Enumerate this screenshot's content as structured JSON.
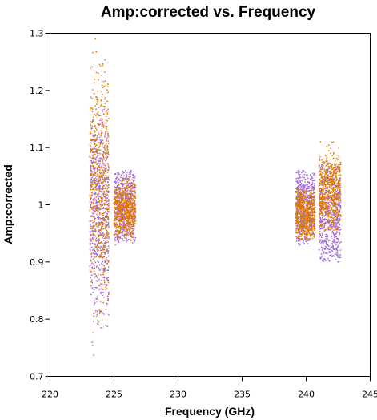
{
  "chart_data": {
    "type": "scatter",
    "title": "Amp:corrected vs. Frequency",
    "xlabel": "Frequency (GHz)",
    "ylabel": "Amp:corrected",
    "xlim": [
      220,
      245
    ],
    "ylim": [
      0.7,
      1.3
    ],
    "x_ticks": [
      "220",
      "225",
      "230",
      "235",
      "240",
      "245"
    ],
    "y_ticks": [
      "0.7",
      "0.8",
      "0.9",
      "1",
      "1.1",
      "1.2",
      "1.3"
    ],
    "grid": false,
    "colors": {
      "purple": "#a066e0",
      "orange": "#e07800"
    },
    "series": [
      {
        "color": "#a066e0",
        "clusters": [
          {
            "x_range": [
              223.1,
              224.6
            ],
            "center": 0.99,
            "spread": 0.1,
            "min": 0.785,
            "max": 1.17
          },
          {
            "x_range": [
              225.0,
              226.7
            ],
            "center": 1.0,
            "spread": 0.04,
            "min": 0.93,
            "max": 1.06
          },
          {
            "x_range": [
              239.2,
              240.7
            ],
            "center": 1.0,
            "spread": 0.035,
            "min": 0.93,
            "max": 1.06
          },
          {
            "x_range": [
              241.0,
              242.7
            ],
            "center": 0.975,
            "spread": 0.05,
            "min": 0.9,
            "max": 1.07
          }
        ]
      },
      {
        "color": "#e07800",
        "clusters": [
          {
            "x_range": [
              223.1,
              224.6
            ],
            "center": 1.03,
            "spread": 0.1,
            "min": 0.737,
            "max": 1.29
          },
          {
            "x_range": [
              225.0,
              226.7
            ],
            "center": 0.99,
            "spread": 0.025,
            "min": 0.94,
            "max": 1.05
          },
          {
            "x_range": [
              239.2,
              240.7
            ],
            "center": 0.98,
            "spread": 0.025,
            "min": 0.94,
            "max": 1.03
          },
          {
            "x_range": [
              241.0,
              242.7
            ],
            "center": 1.02,
            "spread": 0.035,
            "min": 0.95,
            "max": 1.11
          }
        ]
      }
    ]
  }
}
